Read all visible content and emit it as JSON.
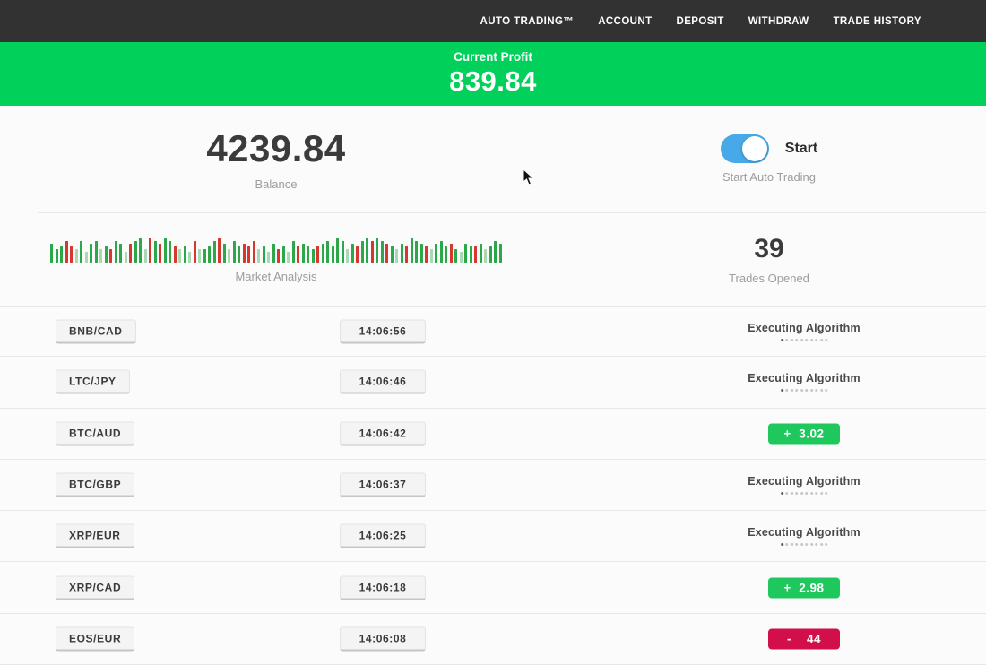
{
  "nav": {
    "items": [
      {
        "label": "Auto Trading™"
      },
      {
        "label": "Account"
      },
      {
        "label": "Deposit"
      },
      {
        "label": "Withdraw"
      },
      {
        "label": "Trade History"
      }
    ]
  },
  "banner": {
    "label": "Current Profit",
    "value": "839.84"
  },
  "account": {
    "balance": "4239.84",
    "balance_label": "Balance",
    "toggle_label": "Start",
    "toggle_sublabel": "Start Auto Trading",
    "toggle_state": "on"
  },
  "market": {
    "chart_label": "Market Analysis",
    "trades_opened": "39",
    "trades_opened_label": "Trades Opened"
  },
  "chart_data": {
    "type": "bar",
    "title": "Market Analysis",
    "description": "Decorative mini candlestick-style strip; tokens are color letter (g=green, r=red, G=pale green, R=pale red) + relative height 2-7",
    "bars": [
      "g5",
      "g3",
      "g4",
      "r6",
      "r4",
      "G3",
      "g6",
      "G2",
      "g5",
      "g6",
      "G3",
      "g4",
      "r3",
      "g6",
      "g5",
      "G2",
      "r5",
      "g6",
      "g7",
      "G3",
      "r7",
      "g6",
      "r5",
      "g7",
      "g6",
      "r4",
      "G3",
      "g4",
      "G2",
      "r6",
      "G3",
      "g3",
      "g4",
      "g6",
      "r7",
      "g5",
      "G3",
      "g6",
      "g4",
      "r5",
      "r4",
      "r6",
      "G3",
      "g4",
      "G2",
      "g5",
      "r3",
      "g4",
      "G2",
      "g6",
      "r4",
      "g5",
      "g4",
      "g3",
      "r4",
      "g5",
      "g6",
      "g4",
      "g7",
      "g6",
      "G3",
      "g5",
      "r4",
      "g6",
      "g7",
      "r6",
      "g7",
      "g6",
      "r5",
      "g4",
      "G3",
      "g5",
      "r4",
      "g7",
      "g6",
      "g5",
      "r4",
      "G3",
      "g5",
      "g6",
      "g4",
      "r5",
      "g3",
      "G2",
      "g5",
      "g4",
      "r4",
      "g5",
      "G3",
      "g4",
      "g6",
      "g5"
    ]
  },
  "loader": {
    "dots_count": 10
  },
  "trades": [
    {
      "pair": "BNB/CAD",
      "time": "14:06:56",
      "status": "executing",
      "status_label": "Executing Algorithm"
    },
    {
      "pair": "LTC/JPY",
      "time": "14:06:46",
      "status": "executing",
      "status_label": "Executing Algorithm"
    },
    {
      "pair": "BTC/AUD",
      "time": "14:06:42",
      "status": "profit",
      "result": "+  3.02"
    },
    {
      "pair": "BTC/GBP",
      "time": "14:06:37",
      "status": "executing",
      "status_label": "Executing Algorithm"
    },
    {
      "pair": "XRP/EUR",
      "time": "14:06:25",
      "status": "executing",
      "status_label": "Executing Algorithm"
    },
    {
      "pair": "XRP/CAD",
      "time": "14:06:18",
      "status": "profit",
      "result": "+  2.98"
    },
    {
      "pair": "EOS/EUR",
      "time": "14:06:08",
      "status": "loss",
      "result": "-    44"
    }
  ],
  "colors": {
    "nav_bg": "#323232",
    "banner_green": "#01d05a",
    "profit_green": "#1ec85d",
    "loss_red": "#d20f4b",
    "toggle_blue": "#47a9e8"
  }
}
